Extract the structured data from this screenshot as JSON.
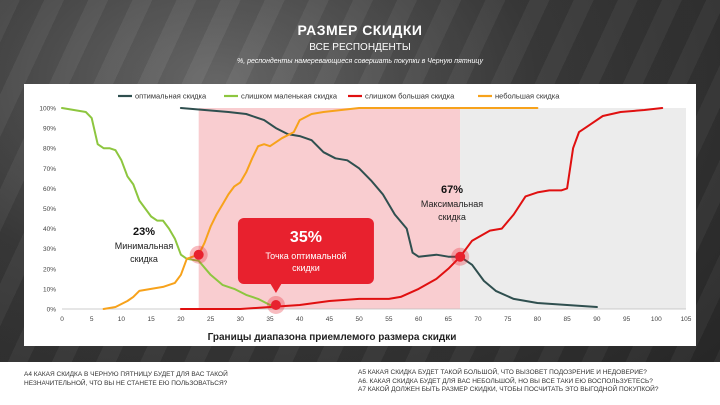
{
  "title": "РАЗМЕР СКИДКИ",
  "subtitle": "ВСЕ РЕСПОНДЕНТЫ",
  "note": "%,   респонденты намеревающиеся совершать покупки в Черную пятницу",
  "footer": {
    "left": [
      "А4 КАКАЯ СКИДКА  В ЧЕРНУЮ ПЯТНИЦУ  БУДЕТ ДЛЯ ВАС ТАКОЙ",
      "НЕЗНАЧИТЕЛЬНОЙ,  ЧТО ВЫ НЕ СТАНЕТЕ  ЕЮ ПОЛЬЗОВАТЬСЯ?"
    ],
    "right": [
      "А5 КАКАЯ СКИДКА БУДЕТ ТАКОЙ БОЛЬШОЙ,  ЧТО ВЫЗОВЕТ ПОДОЗРЕНИЕ  И НЕДОВЕРИЕ?",
      "А6. КАКАЯ СКИДКА БУДЕТ ДЛЯ ВАС НЕБОЛЬШОЙ,  НО ВЫ ВСЕ ТАКИ ЕЮ ВОСПОЛЬЗУЕТЕСЬ?",
      "А7 КАКОЙ ДОЛЖЕН  БЫТЬ РАЗМЕР СКИДКИ, ЧТОБЫ ПОСЧИТАТЬ  ЭТО ВЫГОДНОЙ ПОКУПКОЙ?"
    ]
  },
  "colors": {
    "optimal": "#2f4f4f",
    "too_small": "#8dc63f",
    "too_big": "#e01010",
    "small": "#f7a21b",
    "band": "#f9cdd0",
    "grey": "#ececec",
    "marker": "#e8212e"
  },
  "chart_data": {
    "type": "line",
    "xlabel": "Границы диапазона приемлемого размера скидки",
    "ylabel": "",
    "xlim": [
      0,
      105
    ],
    "ylim": [
      0,
      100
    ],
    "xticks": [
      0,
      5,
      10,
      15,
      20,
      25,
      30,
      35,
      40,
      45,
      50,
      55,
      60,
      65,
      70,
      75,
      80,
      85,
      90,
      95,
      100,
      105
    ],
    "yticks": [
      "0%",
      "10%",
      "20%",
      "30%",
      "40%",
      "50%",
      "60%",
      "70%",
      "80%",
      "90%",
      "100%"
    ],
    "legend_position": "top",
    "grid": false,
    "shaded_range": [
      23,
      67
    ],
    "series": [
      {
        "name": "оптимальная  скидка",
        "key": "optimal",
        "points": [
          [
            20,
            100
          ],
          [
            24,
            99
          ],
          [
            28,
            98
          ],
          [
            31,
            97
          ],
          [
            34,
            94
          ],
          [
            36,
            90
          ],
          [
            38,
            87
          ],
          [
            40,
            86
          ],
          [
            42,
            84
          ],
          [
            44,
            78
          ],
          [
            46,
            75
          ],
          [
            48,
            74
          ],
          [
            50,
            70
          ],
          [
            52,
            64
          ],
          [
            54,
            57
          ],
          [
            56,
            47
          ],
          [
            58,
            40
          ],
          [
            59,
            28
          ],
          [
            60,
            26
          ],
          [
            63,
            27
          ],
          [
            65,
            26
          ],
          [
            67,
            26
          ],
          [
            69,
            22
          ],
          [
            71,
            14
          ],
          [
            73,
            9
          ],
          [
            76,
            5
          ],
          [
            80,
            3
          ],
          [
            85,
            2
          ],
          [
            90,
            1
          ]
        ]
      },
      {
        "name": "слишком  маленькая скидка",
        "key": "too_small",
        "points": [
          [
            0,
            100
          ],
          [
            2,
            99
          ],
          [
            4,
            98
          ],
          [
            5,
            95
          ],
          [
            6,
            82
          ],
          [
            7,
            80
          ],
          [
            8,
            80
          ],
          [
            9,
            79
          ],
          [
            10,
            74
          ],
          [
            11,
            66
          ],
          [
            12,
            62
          ],
          [
            13,
            54
          ],
          [
            14,
            50
          ],
          [
            15,
            46
          ],
          [
            16,
            44
          ],
          [
            17,
            44
          ],
          [
            18,
            40
          ],
          [
            19,
            35
          ],
          [
            20,
            27
          ],
          [
            21,
            25
          ],
          [
            23,
            24
          ],
          [
            25,
            17
          ],
          [
            27,
            12
          ],
          [
            29,
            10
          ],
          [
            31,
            7
          ],
          [
            33,
            5
          ],
          [
            35,
            2
          ],
          [
            36,
            1
          ]
        ]
      },
      {
        "name": "слишком  большая скидка",
        "key": "too_big",
        "points": [
          [
            20,
            0
          ],
          [
            30,
            0
          ],
          [
            35,
            1
          ],
          [
            40,
            2
          ],
          [
            45,
            4
          ],
          [
            50,
            5
          ],
          [
            55,
            5
          ],
          [
            57,
            6
          ],
          [
            60,
            10
          ],
          [
            63,
            15
          ],
          [
            65,
            20
          ],
          [
            67,
            26
          ],
          [
            69,
            34
          ],
          [
            72,
            39
          ],
          [
            74,
            40
          ],
          [
            76,
            47
          ],
          [
            78,
            56
          ],
          [
            80,
            58
          ],
          [
            82,
            59
          ],
          [
            84,
            59
          ],
          [
            85,
            60
          ],
          [
            86,
            80
          ],
          [
            87,
            88
          ],
          [
            89,
            92
          ],
          [
            91,
            96
          ],
          [
            94,
            98
          ],
          [
            98,
            99
          ],
          [
            101,
            100
          ]
        ]
      },
      {
        "name": "небольшая  скидка",
        "key": "small",
        "points": [
          [
            7,
            0
          ],
          [
            9,
            1
          ],
          [
            11,
            4
          ],
          [
            12,
            6
          ],
          [
            13,
            9
          ],
          [
            15,
            10
          ],
          [
            17,
            11
          ],
          [
            19,
            13
          ],
          [
            20,
            17
          ],
          [
            21,
            25
          ],
          [
            22,
            26
          ],
          [
            23,
            27
          ],
          [
            24,
            33
          ],
          [
            25,
            41
          ],
          [
            26,
            47
          ],
          [
            27,
            52
          ],
          [
            28,
            57
          ],
          [
            29,
            61
          ],
          [
            30,
            63
          ],
          [
            31,
            68
          ],
          [
            32,
            75
          ],
          [
            33,
            81
          ],
          [
            34,
            82
          ],
          [
            35,
            81
          ],
          [
            37,
            85
          ],
          [
            39,
            88
          ],
          [
            40,
            94
          ],
          [
            42,
            97
          ],
          [
            44,
            98
          ],
          [
            47,
            99
          ],
          [
            50,
            100
          ],
          [
            60,
            100
          ],
          [
            80,
            100
          ]
        ]
      }
    ],
    "annotations": [
      {
        "key": "min",
        "x": 23,
        "y": 27,
        "value": "23%",
        "label": [
          "Минимальная",
          "скидка"
        ]
      },
      {
        "key": "opt",
        "x": 36,
        "y": 2,
        "value": "35%",
        "label": [
          "Точка оптимальной",
          "скидки"
        ]
      },
      {
        "key": "max",
        "x": 67,
        "y": 26,
        "value": "67%",
        "label": [
          "Максимальная",
          "скидка"
        ]
      }
    ]
  }
}
